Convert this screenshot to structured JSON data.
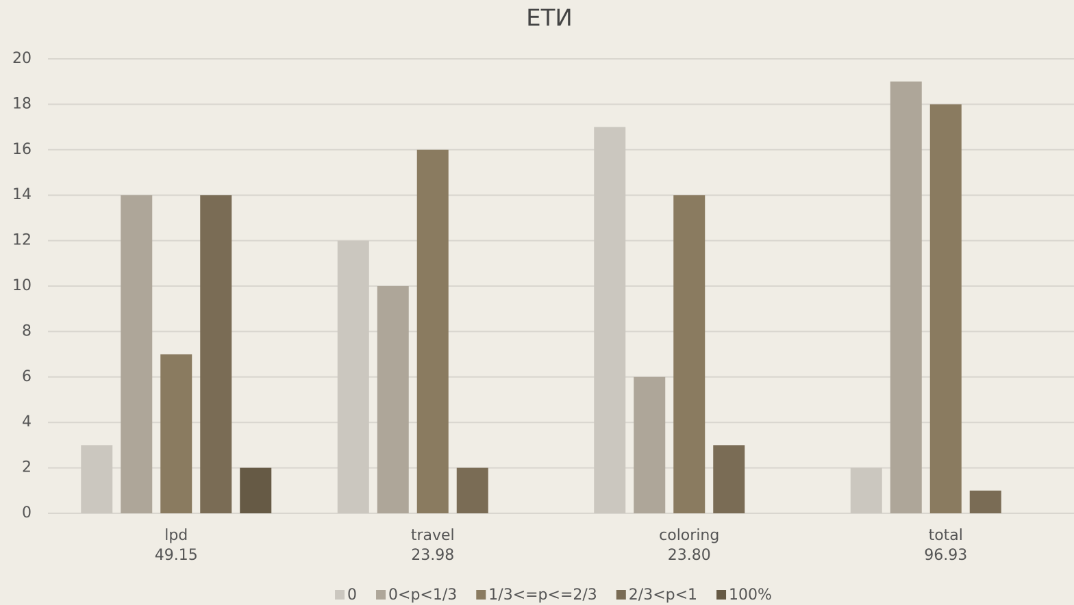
{
  "chart_data": {
    "type": "bar",
    "title": "ЕТИ",
    "categories": [
      [
        "lpd",
        "49.15"
      ],
      [
        "travel",
        "23.98"
      ],
      [
        "coloring",
        "23.80"
      ],
      [
        "total",
        "96.93"
      ]
    ],
    "series": [
      {
        "name": "0",
        "color": "#cbc7bf",
        "values": [
          3,
          12,
          17,
          2
        ]
      },
      {
        "name": "0<p<1/3",
        "color": "#aea699",
        "values": [
          14,
          10,
          6,
          19
        ]
      },
      {
        "name": "1/3<=p<=2/3",
        "color": "#8a7b60",
        "values": [
          7,
          16,
          14,
          18
        ]
      },
      {
        "name": "2/3<p<1",
        "color": "#7a6c55",
        "values": [
          14,
          2,
          3,
          1
        ]
      },
      {
        "name": "100%",
        "color": "#665a45",
        "values": [
          2,
          0,
          0,
          0
        ]
      }
    ],
    "ylim": [
      0,
      20
    ],
    "yticks": [
      0,
      2,
      4,
      6,
      8,
      10,
      12,
      14,
      16,
      18,
      20
    ],
    "grid": true,
    "legend": "bottom"
  }
}
